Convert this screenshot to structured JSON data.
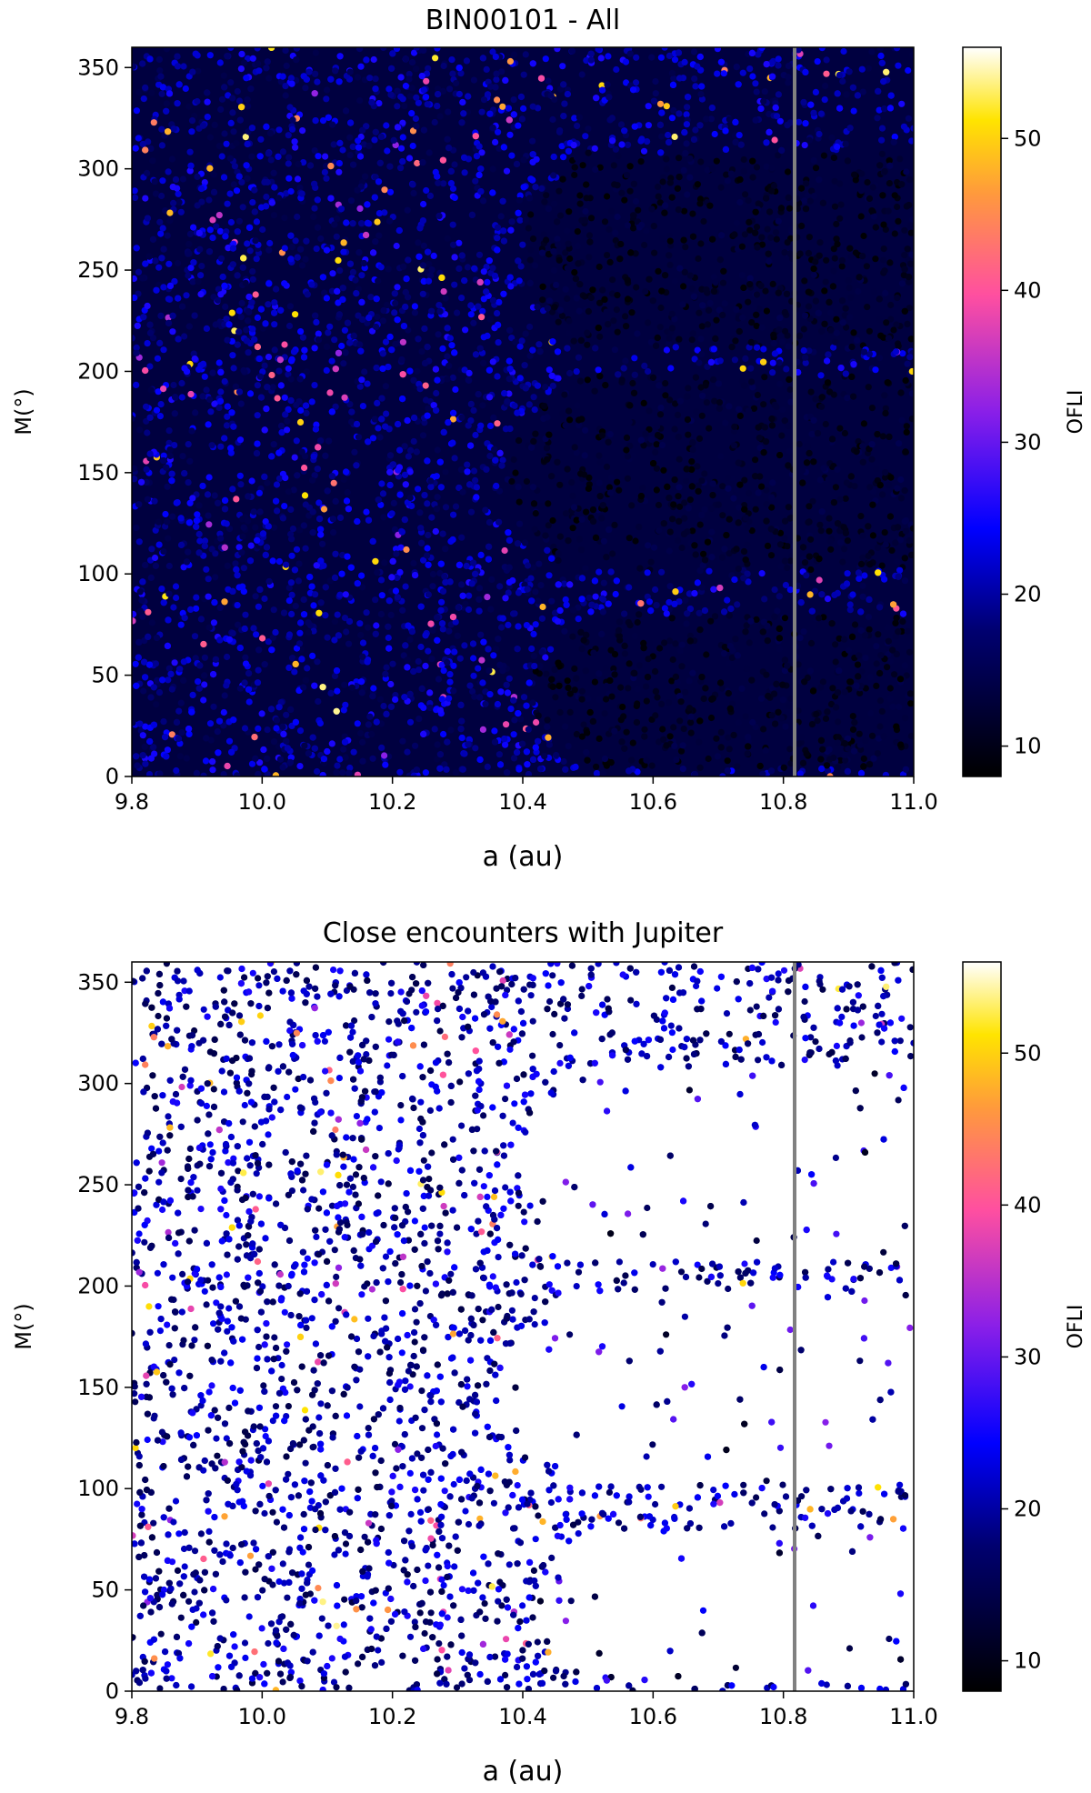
{
  "chart_data": [
    {
      "type": "scatter",
      "title": "BIN00101 - All",
      "xlabel": "a (au)",
      "ylabel": "M(°)",
      "xlim": [
        9.8,
        11.0
      ],
      "ylim": [
        0,
        360
      ],
      "xticks": [
        "9.8",
        "10.0",
        "10.2",
        "10.4",
        "10.6",
        "10.8",
        "11.0"
      ],
      "yticks": [
        "0",
        "50",
        "100",
        "150",
        "200",
        "250",
        "300",
        "350"
      ],
      "colorbar": {
        "label": "OFLI",
        "range": [
          8,
          56
        ],
        "ticks": [
          "10",
          "20",
          "30",
          "40",
          "50"
        ],
        "colormap": "gnuplot2"
      },
      "reference_line_a": 10.82,
      "low_ofli_regions": [
        {
          "a_min": 10.4,
          "M_center": 260,
          "M_halfwidth": 48
        },
        {
          "a_min": 10.38,
          "M_center": 150,
          "M_halfwidth": 48
        },
        {
          "a_min": 10.42,
          "M_center": 42,
          "M_halfwidth": 38
        }
      ],
      "removed_points": false,
      "background_ofli_range": [
        14,
        26
      ]
    },
    {
      "type": "scatter",
      "title": "Close encounters with Jupiter",
      "xlabel": "a (au)",
      "ylabel": "M(°)",
      "xlim": [
        9.8,
        11.0
      ],
      "ylim": [
        0,
        360
      ],
      "xticks": [
        "9.8",
        "10.0",
        "10.2",
        "10.4",
        "10.6",
        "10.8",
        "11.0"
      ],
      "yticks": [
        "0",
        "50",
        "100",
        "150",
        "200",
        "250",
        "300",
        "350"
      ],
      "colorbar": {
        "label": "OFLI",
        "range": [
          8,
          56
        ],
        "ticks": [
          "10",
          "20",
          "30",
          "40",
          "50"
        ],
        "colormap": "gnuplot2"
      },
      "reference_line_a": 10.82,
      "empty_regions": [
        {
          "a_min": 10.4,
          "M_center": 260,
          "M_halfwidth": 48
        },
        {
          "a_min": 10.38,
          "M_center": 150,
          "M_halfwidth": 48
        },
        {
          "a_min": 10.42,
          "M_center": 42,
          "M_halfwidth": 38
        }
      ],
      "removed_points": true,
      "background_ofli_range": [
        14,
        26
      ]
    }
  ],
  "colors": {
    "reference_line": "#808080",
    "axes": "#000000"
  }
}
